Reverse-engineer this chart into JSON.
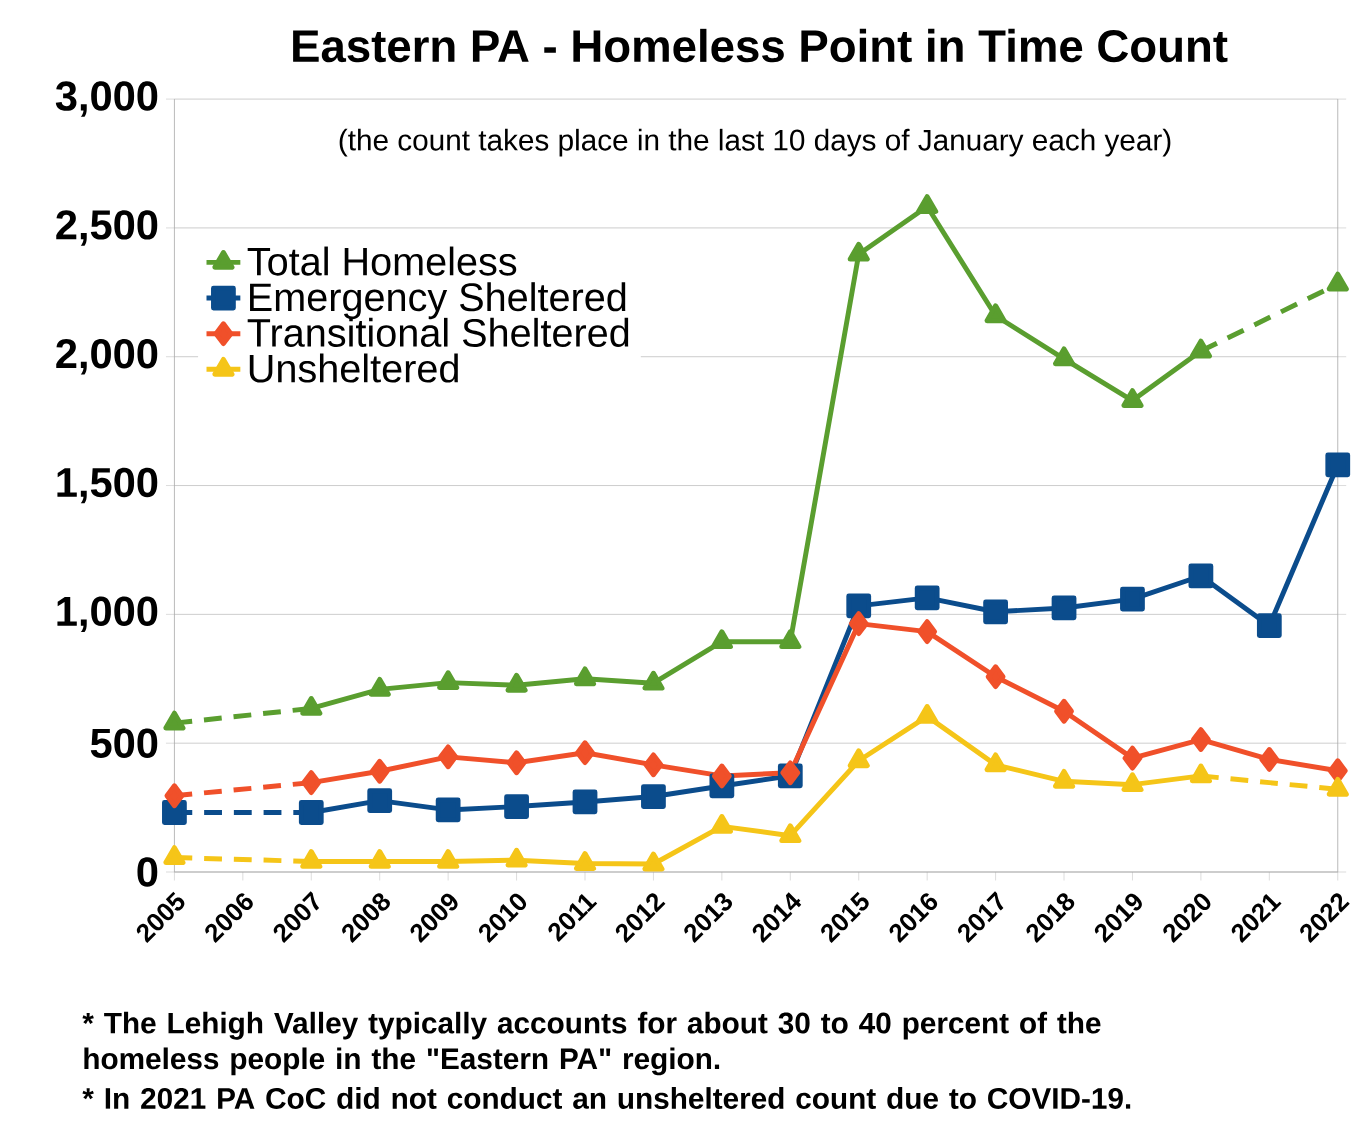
{
  "chart_data": {
    "type": "line",
    "title": "Eastern PA - Homeless Point in Time Count",
    "x": [
      2005,
      2006,
      2007,
      2008,
      2009,
      2010,
      2011,
      2012,
      2013,
      2014,
      2015,
      2016,
      2017,
      2018,
      2019,
      2020,
      2021,
      2022
    ],
    "xlim": [
      2005,
      2022
    ],
    "xticks": [
      2005,
      2006,
      2007,
      2008,
      2009,
      2010,
      2011,
      2012,
      2013,
      2014,
      2015,
      2016,
      2017,
      2018,
      2019,
      2020,
      2021,
      2022
    ],
    "ylim": [
      0,
      3000
    ],
    "yticks": [
      0,
      500,
      {
        "value": 1000,
        "label": "1,000"
      },
      {
        "value": 1500,
        "label": "1,500"
      },
      {
        "value": 2000,
        "label": "2,000"
      },
      {
        "value": 2500,
        "label": "2,500"
      },
      {
        "value": 3000,
        "label": "3,000"
      }
    ],
    "grid": "y",
    "legend": "top left",
    "line_style": "solid",
    "series": [
      {
        "name": "Total Homeless",
        "color": "#5a9e2f",
        "marker": "triangle",
        "values": [
          578,
          null,
          635,
          709,
          735,
          725,
          750,
          733,
          894,
          894,
          2398,
          2583,
          2159,
          1992,
          1830,
          2022,
          null,
          2282
        ]
      },
      {
        "name": "Emergency Sheltered",
        "color": "#0b4c8c",
        "marker": "square",
        "values": [
          231,
          null,
          231,
          277,
          241,
          254,
          272,
          293,
          334,
          373,
          1033,
          1064,
          1010,
          1025,
          1059,
          1149,
          956,
          1580
        ]
      },
      {
        "name": "Transitional Sheltered",
        "color": "#f0502a",
        "marker": "diamond",
        "values": [
          296,
          null,
          347,
          391,
          447,
          424,
          463,
          416,
          373,
          385,
          964,
          933,
          758,
          624,
          442,
          514,
          437,
          393
        ]
      },
      {
        "name": "Unsheltered",
        "color": "#f5c518",
        "marker": "triangle",
        "values": [
          56,
          null,
          41,
          41,
          41,
          46,
          33,
          31,
          177,
          141,
          432,
          604,
          416,
          352,
          339,
          373,
          null,
          321
        ]
      }
    ],
    "annotations": [
      "(the count takes place in the last 10 days of January each year)",
      "* The Lehigh Valley typically accounts for about 30 to 40 percent of the homeless people in the \"Eastern PA\" region.",
      "* In 2021 PA CoC did not conduct an unsheltered count due to COVID-19."
    ]
  }
}
